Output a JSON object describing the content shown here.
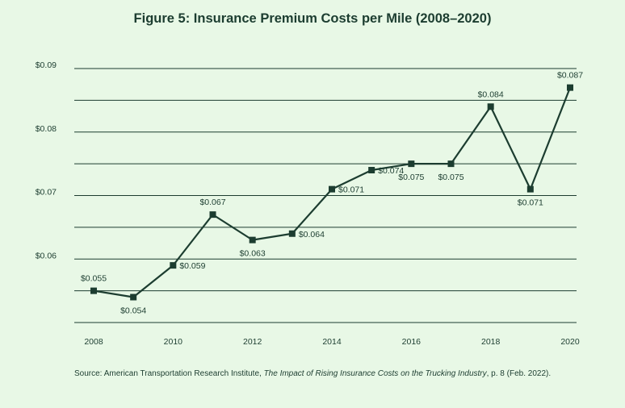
{
  "chart_data": {
    "type": "line",
    "title": "Figure 5: Insurance Premium Costs per Mile (2008–2020)",
    "x": [
      2008,
      2009,
      2010,
      2011,
      2012,
      2013,
      2014,
      2015,
      2016,
      2017,
      2018,
      2019,
      2020
    ],
    "series": [
      {
        "values": [
          0.055,
          0.054,
          0.059,
          0.067,
          0.063,
          0.064,
          0.071,
          0.074,
          0.075,
          0.075,
          0.084,
          0.071,
          0.087
        ],
        "point_labels": [
          "$0.055",
          "$0.054",
          "$0.059",
          "$0.067",
          "$0.063",
          "$0.064",
          "$0.071",
          "$0.074",
          "$0.075",
          "$0.075",
          "$0.084",
          "$0.071",
          "$0.087"
        ]
      }
    ],
    "xticks": [
      2008,
      2010,
      2012,
      2014,
      2016,
      2018,
      2020
    ],
    "xtick_labels": [
      "2008",
      "2010",
      "2012",
      "2014",
      "2016",
      "2018",
      "2020"
    ],
    "yticks": [
      0.06,
      0.07,
      0.08,
      0.09
    ],
    "ytick_labels": [
      "$0.06",
      "$0.07",
      "$0.08",
      "$0.09"
    ],
    "ylim": [
      0.05,
      0.09
    ],
    "xlim": [
      2008,
      2020
    ],
    "grid": "horizontal",
    "line_color": "#1c3d30",
    "background_color": "#e8f8e6"
  },
  "source": {
    "prefix": "Source: American Transportation Research Institute, ",
    "publication": "The Impact of Rising Insurance Costs on the Trucking Industry",
    "suffix": ", p. 8 (Feb. 2022)."
  }
}
